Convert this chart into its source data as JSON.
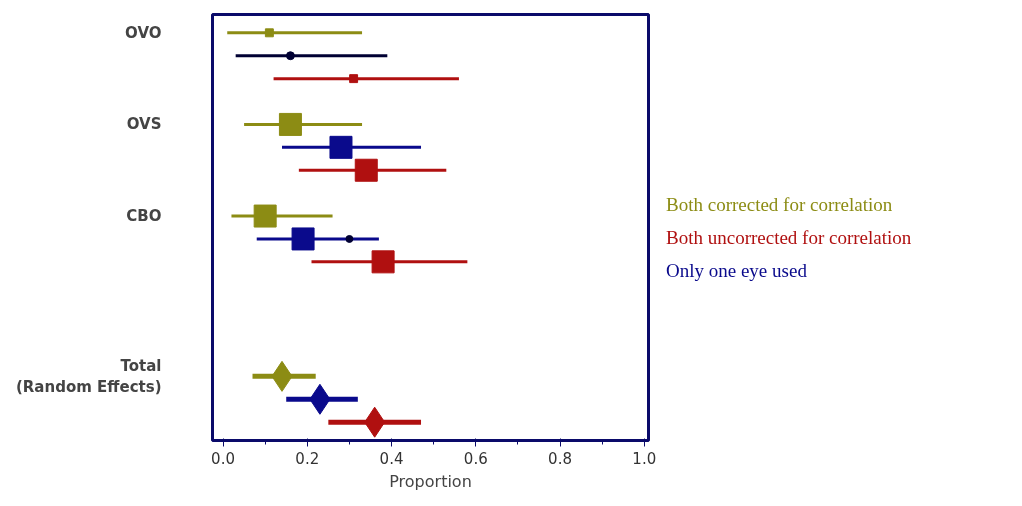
{
  "chart_data": {
    "type": "scatter",
    "orientation": "horizontal",
    "xlabel": "Proportion",
    "legend": "right",
    "grid": false,
    "categories": [
      "OVO",
      null,
      null,
      null,
      "OVS",
      null,
      null,
      null,
      "CBO",
      null,
      null,
      null,
      null,
      null,
      null,
      "Total\n(Random Effects)",
      null,
      null
    ],
    "xlim": [
      -0.025,
      1.01
    ],
    "xticks": [
      {
        "value": 0,
        "label": "0.0"
      },
      {
        "value": 0.2,
        "label": "0.2"
      },
      {
        "value": 0.4,
        "label": "0.4"
      },
      {
        "value": 0.6,
        "label": "0.6"
      },
      {
        "value": 0.8,
        "label": "0.8"
      },
      {
        "value": 1,
        "label": "1.0"
      }
    ],
    "series": [
      {
        "name": "Both corrected for correlation",
        "color": "#8c8c14",
        "marker": "square",
        "values": [
          0.11,
          null,
          null,
          null,
          0.16,
          null,
          null,
          null,
          0.1,
          null,
          null,
          null,
          null,
          null,
          null,
          null,
          null,
          null
        ],
        "errors": [
          [
            0.01,
            0.33
          ],
          null,
          null,
          null,
          [
            0.05,
            0.33
          ],
          null,
          null,
          null,
          [
            0.02,
            0.26
          ],
          null,
          null,
          null,
          null,
          null,
          null,
          null,
          null,
          null
        ],
        "sizes": [
          0.13,
          null,
          null,
          null,
          1,
          null,
          null,
          null,
          1,
          null,
          null,
          null,
          null,
          null,
          null,
          null,
          null,
          null
        ]
      },
      {
        "name": "Both uncorrected for correlation",
        "color": "#b01010",
        "marker": "square",
        "values": [
          null,
          null,
          0.31,
          null,
          null,
          null,
          0.34,
          null,
          null,
          null,
          0.38,
          null,
          null,
          null,
          null,
          null,
          null,
          null
        ],
        "errors": [
          null,
          null,
          [
            0.12,
            0.56
          ],
          null,
          null,
          null,
          [
            0.18,
            0.53
          ],
          null,
          null,
          null,
          [
            0.21,
            0.58
          ],
          null,
          null,
          null,
          null,
          null,
          null,
          null
        ],
        "sizes": [
          null,
          null,
          0.13,
          null,
          null,
          null,
          1,
          null,
          null,
          null,
          1,
          null,
          null,
          null,
          null,
          null,
          null,
          null
        ]
      },
      {
        "name": "Only one eye used",
        "color": "#0a0a8c",
        "marker": "square",
        "values": [
          null,
          null,
          null,
          null,
          null,
          0.28,
          null,
          null,
          null,
          0.19,
          null,
          null,
          null,
          null,
          null,
          null,
          null,
          null
        ],
        "errors": [
          null,
          null,
          null,
          null,
          null,
          [
            0.14,
            0.47
          ],
          null,
          null,
          null,
          [
            0.08,
            0.37
          ],
          null,
          null,
          null,
          null,
          null,
          null,
          null,
          null
        ],
        "sizes": [
          null,
          null,
          null,
          null,
          null,
          1,
          null,
          null,
          null,
          1,
          null,
          null,
          null,
          null,
          null,
          null,
          null,
          null
        ]
      },
      {
        "color": "#000033",
        "marker": "circle",
        "values": [
          null,
          0.16,
          null,
          null,
          null,
          null,
          null,
          null,
          null,
          0.3,
          null,
          null,
          null,
          null,
          null,
          null,
          null,
          null
        ],
        "errors": [
          null,
          [
            0.03,
            0.39
          ],
          null,
          null,
          null,
          null,
          null,
          null,
          null,
          null,
          null,
          null,
          null,
          null,
          null,
          null,
          null,
          null
        ],
        "sizes": [
          null,
          0.13,
          null,
          null,
          null,
          null,
          null,
          null,
          null,
          0.1,
          null,
          null,
          null,
          null,
          null,
          null,
          null,
          null
        ]
      },
      {
        "color": "#8c8c14",
        "marker": "diamond",
        "values": [
          null,
          null,
          null,
          null,
          null,
          null,
          null,
          null,
          null,
          null,
          null,
          null,
          null,
          null,
          null,
          0.14,
          null,
          null
        ],
        "errors": [
          null,
          null,
          null,
          null,
          null,
          null,
          null,
          null,
          null,
          null,
          null,
          null,
          null,
          null,
          null,
          [
            0.07,
            0.22
          ],
          null,
          null
        ]
      },
      {
        "color": "#0a0a8c",
        "marker": "diamond",
        "values": [
          null,
          null,
          null,
          null,
          null,
          null,
          null,
          null,
          null,
          null,
          null,
          null,
          null,
          null,
          null,
          null,
          0.23,
          null
        ],
        "errors": [
          null,
          null,
          null,
          null,
          null,
          null,
          null,
          null,
          null,
          null,
          null,
          null,
          null,
          null,
          null,
          null,
          [
            0.15,
            0.32
          ],
          null
        ]
      },
      {
        "color": "#b01010",
        "marker": "diamond",
        "values": [
          null,
          null,
          null,
          null,
          null,
          null,
          null,
          null,
          null,
          null,
          null,
          null,
          null,
          null,
          null,
          null,
          null,
          0.36
        ],
        "errors": [
          null,
          null,
          null,
          null,
          null,
          null,
          null,
          null,
          null,
          null,
          null,
          null,
          null,
          null,
          null,
          null,
          null,
          [
            0.25,
            0.47
          ]
        ]
      }
    ]
  }
}
